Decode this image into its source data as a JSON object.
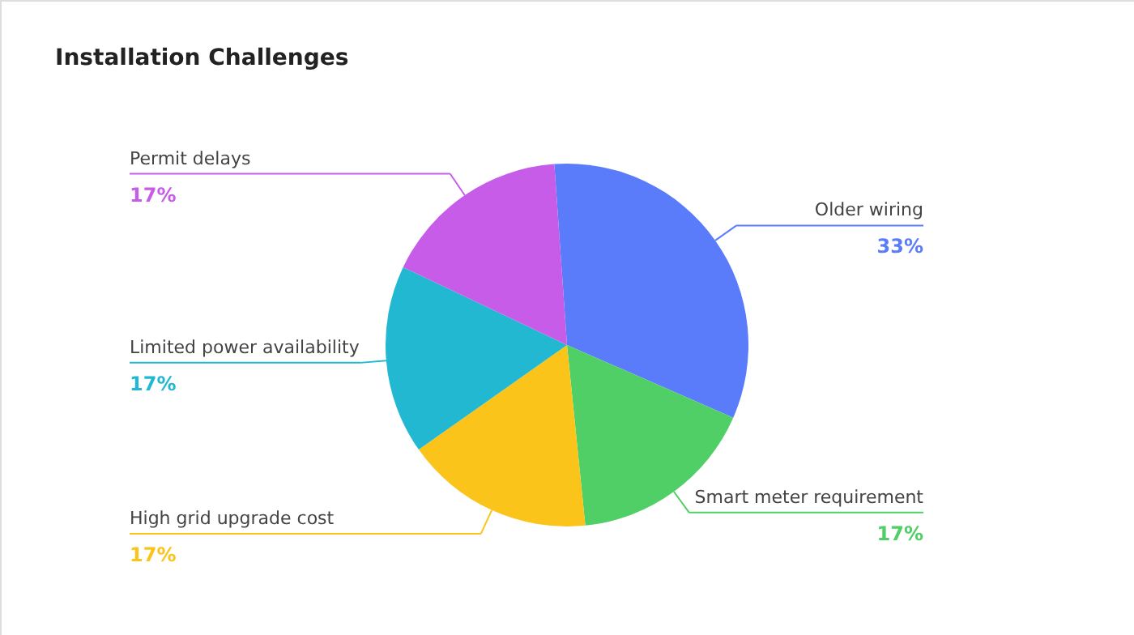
{
  "chart_data": {
    "type": "pie",
    "title": "Installation Challenges",
    "categories": [
      "Older wiring",
      "Smart meter requirement",
      "High grid upgrade cost",
      "Limited power availability",
      "Permit delays"
    ],
    "values": [
      33,
      17,
      17,
      17,
      17
    ],
    "value_labels": [
      "33%",
      "17%",
      "17%",
      "17%",
      "17%"
    ],
    "colors": [
      "#5b7cfa",
      "#50cf66",
      "#fbc41a",
      "#22b8d2",
      "#c75ce8"
    ]
  }
}
